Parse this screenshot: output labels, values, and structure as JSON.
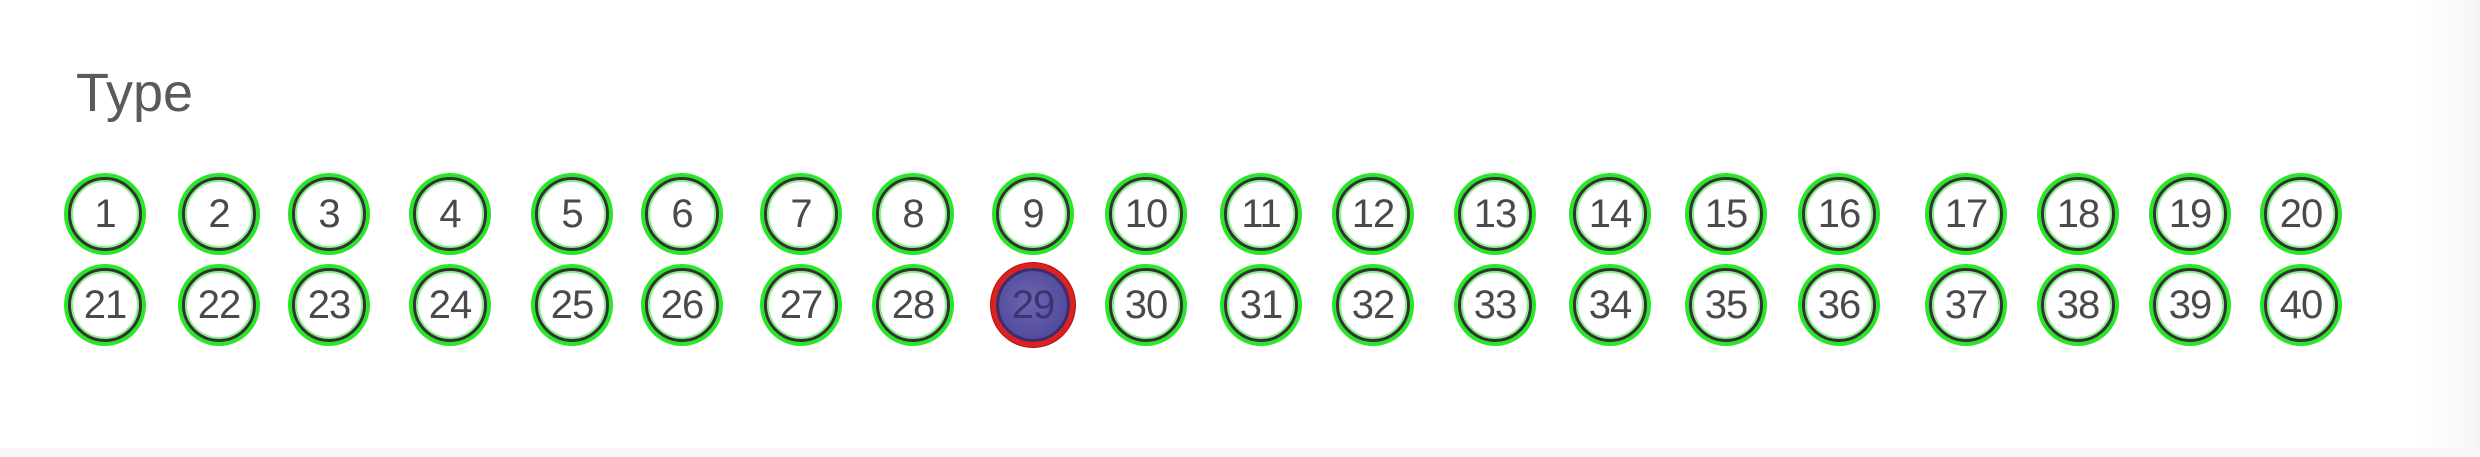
{
  "section": {
    "title": "Type"
  },
  "choices": [
    {
      "label": "1",
      "selected": false
    },
    {
      "label": "2",
      "selected": false
    },
    {
      "label": "3",
      "selected": false
    },
    {
      "label": "4",
      "selected": false
    },
    {
      "label": "5",
      "selected": false
    },
    {
      "label": "6",
      "selected": false
    },
    {
      "label": "7",
      "selected": false
    },
    {
      "label": "8",
      "selected": false
    },
    {
      "label": "9",
      "selected": false
    },
    {
      "label": "10",
      "selected": false
    },
    {
      "label": "11",
      "selected": false
    },
    {
      "label": "12",
      "selected": false
    },
    {
      "label": "13",
      "selected": false
    },
    {
      "label": "14",
      "selected": false
    },
    {
      "label": "15",
      "selected": false
    },
    {
      "label": "16",
      "selected": false
    },
    {
      "label": "17",
      "selected": false
    },
    {
      "label": "18",
      "selected": false
    },
    {
      "label": "19",
      "selected": false
    },
    {
      "label": "20",
      "selected": false
    },
    {
      "label": "21",
      "selected": false
    },
    {
      "label": "22",
      "selected": false
    },
    {
      "label": "23",
      "selected": false
    },
    {
      "label": "24",
      "selected": false
    },
    {
      "label": "25",
      "selected": false
    },
    {
      "label": "26",
      "selected": false
    },
    {
      "label": "27",
      "selected": false
    },
    {
      "label": "28",
      "selected": false
    },
    {
      "label": "29",
      "selected": true
    },
    {
      "label": "30",
      "selected": false
    },
    {
      "label": "31",
      "selected": false
    },
    {
      "label": "32",
      "selected": false
    },
    {
      "label": "33",
      "selected": false
    },
    {
      "label": "34",
      "selected": false
    },
    {
      "label": "35",
      "selected": false
    },
    {
      "label": "36",
      "selected": false
    },
    {
      "label": "37",
      "selected": false
    },
    {
      "label": "38",
      "selected": false
    },
    {
      "label": "39",
      "selected": false
    },
    {
      "label": "40",
      "selected": false
    }
  ],
  "colors": {
    "unselected_ring": "#29e629",
    "selected_ring": "#e01f1f",
    "selected_fill": "#574f9f"
  }
}
